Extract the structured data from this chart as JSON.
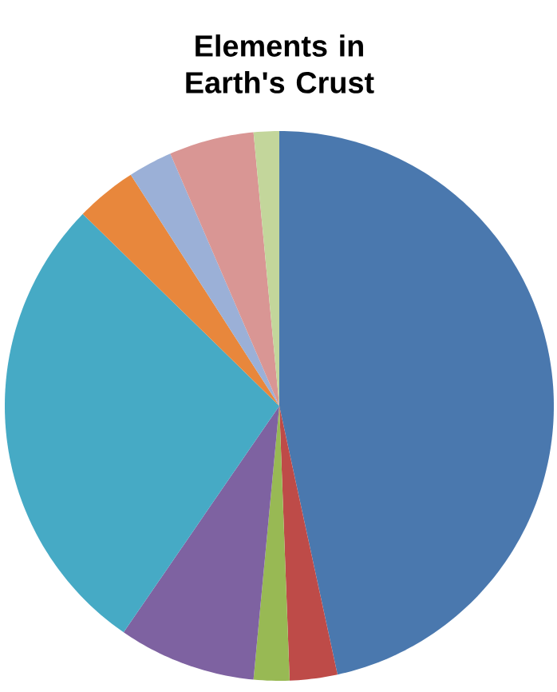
{
  "chart_data": {
    "type": "pie",
    "title": "Elements in Earth's Crust",
    "categories": [
      null,
      null,
      null,
      null,
      null,
      null,
      null,
      null,
      null
    ],
    "values": [
      46.6,
      2.8,
      2.1,
      8.1,
      27.7,
      3.6,
      2.6,
      5.0,
      1.5
    ],
    "colors": [
      "#4a78ae",
      "#be4b48",
      "#98b954",
      "#7e62a1",
      "#46aac5",
      "#e8873c",
      "#9bb0d7",
      "#d99694",
      "#c3d69b"
    ]
  }
}
